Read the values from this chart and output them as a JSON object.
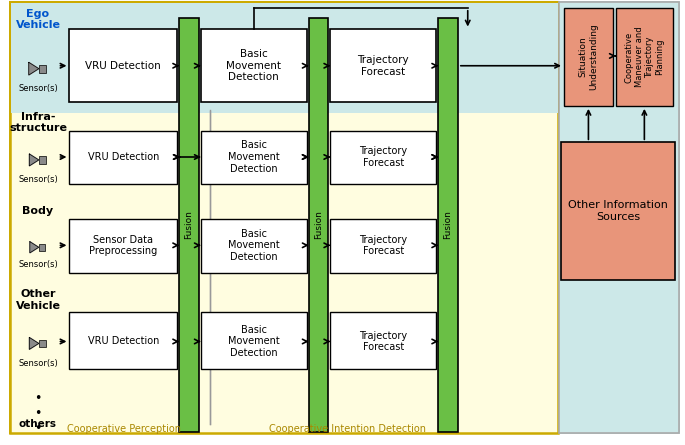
{
  "bg_cyan": "#cce8e8",
  "bg_yellow": "#fffde0",
  "color_green_fusion": "#6abf45",
  "color_white_box": "#ffffff",
  "color_gray_sensor": "#8a8a8a",
  "color_salmon_box": "#e8957a",
  "ego_label": "Ego\nVehicle",
  "infra_label": "Infra-\nstructure",
  "body_label": "Body",
  "other_label": "Other\nVehicle",
  "sensor_label": "Sensor(s)",
  "coop_perc_label": "Cooperative Perception",
  "coop_intent_label": "Cooperative Intention Detection",
  "sit_understand_label": "Situation\nUnderstanding",
  "coop_maneuver_label": "Cooperative\nManeuver and\nTrajectory\nPlanning",
  "other_info_label": "Other Information\nSources",
  "vru_label": "VRU Detection",
  "sensor_data_label": "Sensor Data\nPreprocessing",
  "basic_move_label": "Basic\nMovement\nDetection",
  "traj_fore_label": "Trajectory\nForecast",
  "fusion_label": "Fusion"
}
